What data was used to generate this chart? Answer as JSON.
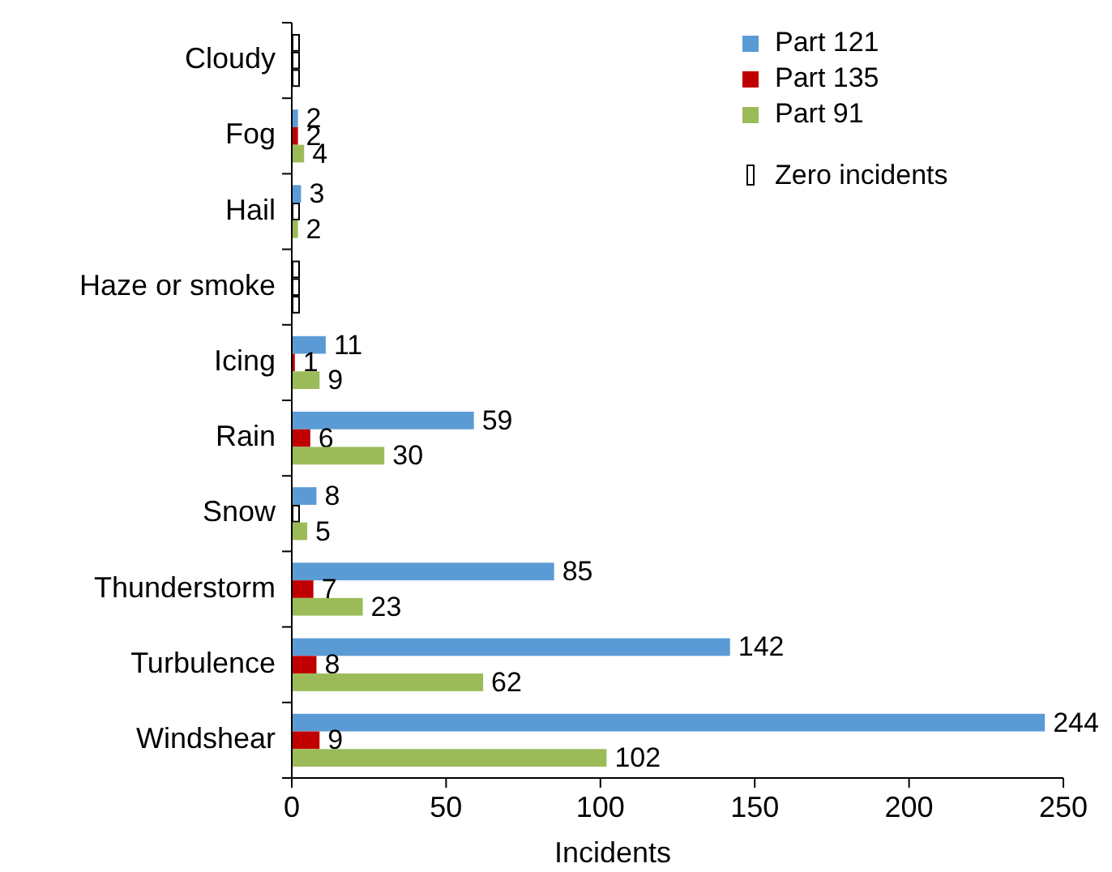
{
  "chart_data": {
    "type": "bar",
    "orientation": "horizontal",
    "xlabel": "Incidents",
    "categories": [
      "Cloudy",
      "Fog",
      "Hail",
      "Haze or smoke",
      "Icing",
      "Rain",
      "Snow",
      "Thunderstorm",
      "Turbulence",
      "Windshear"
    ],
    "series": [
      {
        "name": "Part 121",
        "color": "#5b9bd5",
        "values": [
          0,
          2,
          3,
          0,
          11,
          59,
          8,
          85,
          142,
          244
        ],
        "value_labels": [
          null,
          "2",
          "3",
          null,
          "11",
          "59",
          "8",
          "85",
          "142",
          "244"
        ]
      },
      {
        "name": "Part 135",
        "color": "#c00000",
        "values": [
          0,
          2,
          0,
          0,
          1,
          6,
          0,
          7,
          8,
          9
        ],
        "value_labels": [
          null,
          "2",
          null,
          null,
          "1",
          "6",
          null,
          "7",
          "8",
          "9"
        ]
      },
      {
        "name": "Part 91",
        "color": "#9bbb59",
        "values": [
          0,
          4,
          2,
          0,
          9,
          30,
          5,
          23,
          62,
          102
        ],
        "value_labels": [
          null,
          "4",
          "2",
          null,
          "9",
          "30",
          "5",
          "23",
          "62",
          "102"
        ]
      }
    ],
    "xlim": [
      0,
      250
    ],
    "xticks": [
      0,
      50,
      100,
      150,
      200,
      250
    ],
    "legend": "top right",
    "annotations": [
      "Zero incidents"
    ]
  }
}
